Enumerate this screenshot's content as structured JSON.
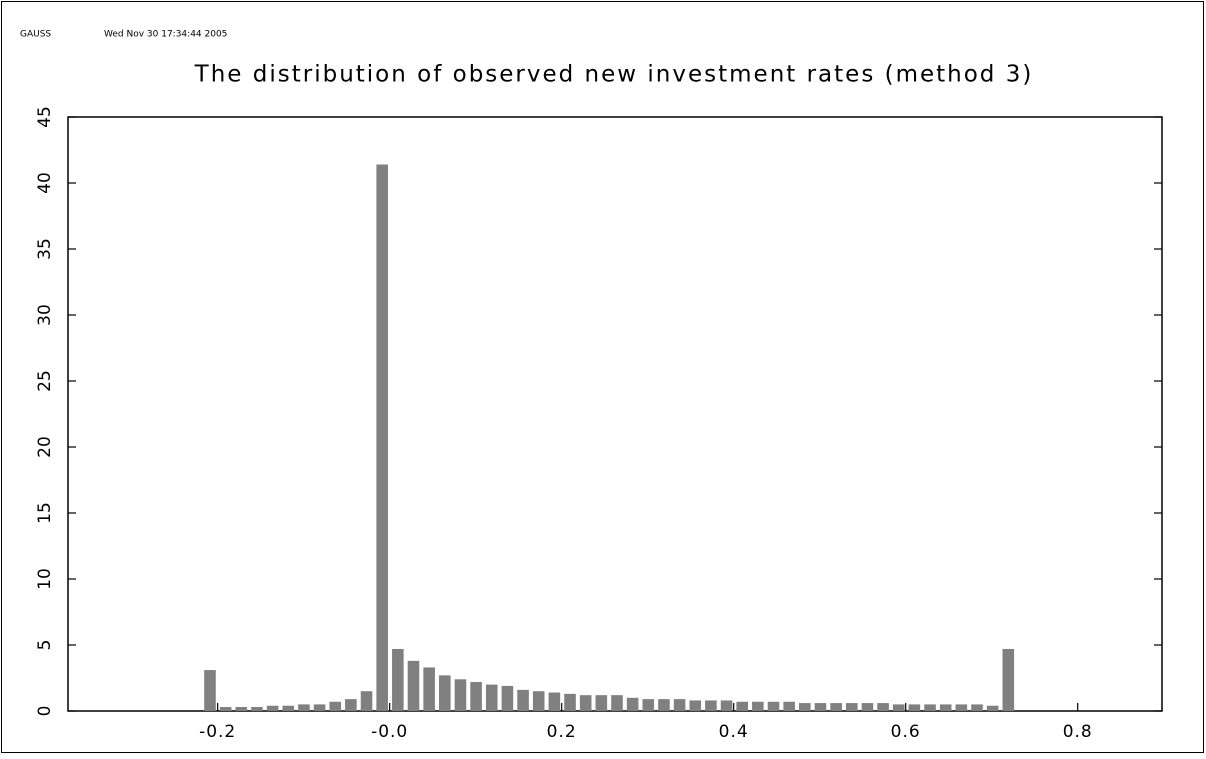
{
  "chart_data": {
    "type": "histogram",
    "header": [
      "GAUSS",
      "Wed Nov 30 17:34:44 2005"
    ],
    "title": "The distribution of observed new investment rates (method 3)",
    "color": "#808080",
    "bins": [
      -0.218,
      -0.1998,
      -0.1816,
      -0.1634,
      -0.1452,
      -0.127,
      -0.1088,
      -0.0906,
      -0.0724,
      -0.0542,
      -0.036,
      -0.0178,
      0.0004,
      0.0186,
      0.0368,
      0.055,
      0.0732,
      0.0914,
      0.1096,
      0.1278,
      0.146,
      0.1642,
      0.1824,
      0.2006,
      0.2188,
      0.237,
      0.2552,
      0.2734,
      0.2916,
      0.3098,
      0.328,
      0.3462,
      0.3644,
      0.3826,
      0.4008,
      0.419,
      0.4372,
      0.4554,
      0.4736,
      0.4918,
      0.51,
      0.5282,
      0.5464,
      0.5646,
      0.5828,
      0.601,
      0.6192,
      0.6374,
      0.6556,
      0.6738,
      0.692,
      0.7102,
      0.7284
    ],
    "values": [
      3.1,
      0.3,
      0.3,
      0.3,
      0.4,
      0.4,
      0.5,
      0.5,
      0.7,
      0.9,
      1.5,
      41.4,
      4.7,
      3.8,
      3.3,
      2.7,
      2.4,
      2.2,
      2.0,
      1.9,
      1.6,
      1.5,
      1.4,
      1.3,
      1.2,
      1.2,
      1.2,
      1.0,
      0.9,
      0.9,
      0.9,
      0.8,
      0.8,
      0.8,
      0.7,
      0.7,
      0.7,
      0.7,
      0.6,
      0.6,
      0.6,
      0.6,
      0.6,
      0.6,
      0.5,
      0.5,
      0.5,
      0.5,
      0.5,
      0.5,
      0.4,
      4.7
    ],
    "xlim": [
      -0.374,
      0.898
    ],
    "xticks": [
      -0.2,
      {
        "value": 0,
        "label": "-0.0"
      },
      0.2,
      0.4,
      0.6,
      0.8
    ],
    "ylim": [
      0,
      45
    ],
    "yticks": [
      0,
      5,
      10,
      15,
      20,
      25,
      30,
      35,
      40,
      45
    ]
  }
}
